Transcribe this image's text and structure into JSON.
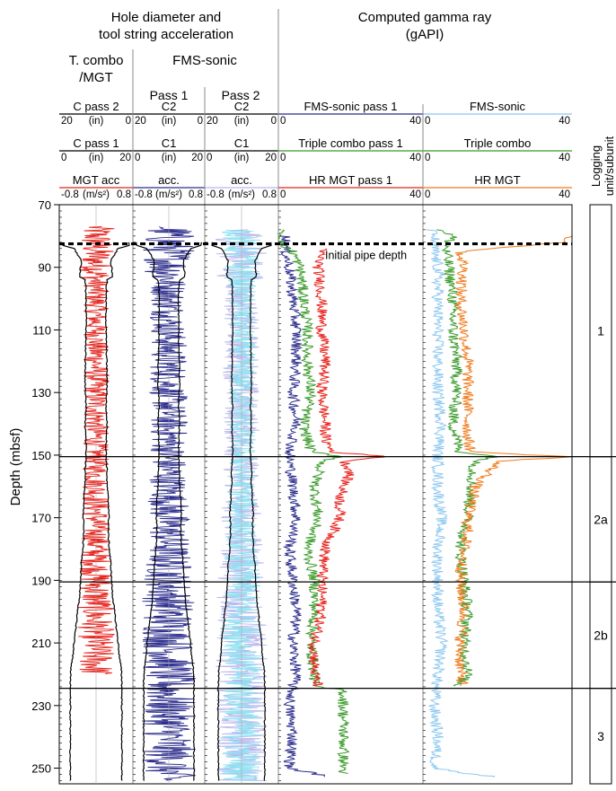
{
  "chart_data": {
    "type": "line",
    "group_headers": {
      "hole": [
        "Hole diameter and",
        "tool string acceleration"
      ],
      "gamma": [
        "Computed gamma ray",
        "(gAPI)"
      ]
    },
    "sub_headers": {
      "tcombo": [
        "T. combo",
        "/MGT"
      ],
      "fms": "FMS-sonic",
      "pass1": "Pass 1",
      "pass2": "Pass 2"
    },
    "y_axis": {
      "label": "Depth (mbsf)",
      "min": 70,
      "max": 255,
      "ticks": [
        70,
        90,
        110,
        130,
        150,
        170,
        190,
        210,
        230,
        250
      ]
    },
    "tracks": [
      {
        "id": "t1",
        "scales": [
          {
            "name": "C pass 2",
            "left": "20",
            "mid": "(in)",
            "right": "0",
            "color": "#000000"
          },
          {
            "name": "C pass 1",
            "left": "0",
            "mid": "(in)",
            "right": "20",
            "color": "#000000"
          },
          {
            "name": "MGT acc",
            "left": "-0.8",
            "mid": "(m/s²)",
            "right": "0.8",
            "color": "#e8201a"
          }
        ]
      },
      {
        "id": "t2",
        "scales": [
          {
            "name": "C2",
            "left": "20",
            "mid": "(in)",
            "right": "0",
            "color": "#000000"
          },
          {
            "name": "C1",
            "left": "0",
            "mid": "(in)",
            "right": "20",
            "color": "#000000"
          },
          {
            "name": "acc.",
            "left": "-0.8",
            "mid": "(m/s²)",
            "right": "0.8",
            "color": "#2b2c8c"
          }
        ]
      },
      {
        "id": "t3",
        "scales": [
          {
            "name": "C2",
            "left": "20",
            "mid": "(in)",
            "right": "0",
            "color": "#000000"
          },
          {
            "name": "C1",
            "left": "0",
            "mid": "(in)",
            "right": "20",
            "color": "#000000"
          },
          {
            "name": "acc.",
            "left": "-0.8",
            "mid": "(m/s²)",
            "right": "0.8",
            "color": "#b9b8ee"
          }
        ]
      },
      {
        "id": "t4",
        "scales": [
          {
            "name": "FMS-sonic pass 1",
            "left": "0",
            "mid": "",
            "right": "40",
            "color": "#2b2c8c"
          },
          {
            "name": "Triple combo pass 1",
            "left": "0",
            "mid": "",
            "right": "40",
            "color": "#3a9a2a"
          },
          {
            "name": "HR MGT pass 1",
            "left": "0",
            "mid": "",
            "right": "40",
            "color": "#e8201a"
          }
        ]
      },
      {
        "id": "t5",
        "scales": [
          {
            "name": "FMS-sonic",
            "left": "0",
            "mid": "",
            "right": "40",
            "color": "#8ec8f0"
          },
          {
            "name": "Triple combo",
            "left": "0",
            "mid": "",
            "right": "40",
            "color": "#3a9a2a"
          },
          {
            "name": "HR MGT",
            "left": "0",
            "mid": "",
            "right": "40",
            "color": "#f07a1a"
          }
        ]
      }
    ],
    "annotation": {
      "text": "Initial pipe depth",
      "depth": 82.5
    },
    "unit_boundaries": [
      150.5,
      190.5,
      224.5
    ],
    "units": {
      "label": [
        "Logging",
        "unit/subunit"
      ],
      "items": [
        {
          "name": "1",
          "top": 70,
          "bottom": 150.5
        },
        {
          "name": "2a",
          "top": 150.5,
          "bottom": 190.5
        },
        {
          "name": "2b",
          "top": 190.5,
          "bottom": 224.5
        },
        {
          "name": "3",
          "top": 224.5,
          "bottom": 255
        }
      ]
    },
    "gamma_series": [
      {
        "name": "FMS-sonic pass 1",
        "track": "t4",
        "color": "#2b2c8c",
        "depth": [
          80,
          85,
          90,
          100,
          110,
          120,
          130,
          140,
          150,
          160,
          170,
          180,
          190,
          200,
          210,
          220,
          224,
          230,
          240,
          250,
          253
        ],
        "value": [
          2,
          2,
          3,
          4,
          5,
          5,
          4,
          5,
          3,
          4,
          5,
          3,
          4,
          5,
          4,
          5,
          4,
          3,
          4,
          3,
          15
        ]
      },
      {
        "name": "Triple combo pass 1",
        "track": "t4",
        "color": "#3a9a2a",
        "depth": [
          78,
          80,
          83,
          85,
          90,
          100,
          110,
          120,
          130,
          140,
          149,
          150.5,
          152,
          160,
          170,
          180,
          190,
          200,
          210,
          220,
          224,
          225,
          252
        ],
        "value": [
          0,
          1,
          1,
          4,
          6,
          7,
          8,
          8,
          9,
          7,
          9,
          18,
          12,
          10,
          11,
          8,
          10,
          10,
          9,
          10,
          10,
          18,
          18
        ]
      },
      {
        "name": "HR MGT pass 1",
        "track": "t4",
        "color": "#e8201a",
        "depth": [
          84,
          90,
          100,
          110,
          120,
          130,
          140,
          145,
          149,
          150.5,
          152,
          155,
          160,
          165,
          170,
          175,
          180,
          190,
          200,
          210,
          220,
          224
        ],
        "value": [
          12,
          11,
          12,
          12,
          13,
          12,
          13,
          13,
          15,
          30,
          18,
          20,
          18,
          17,
          17,
          15,
          13,
          12,
          12,
          10,
          10,
          11
        ]
      },
      {
        "name": "FMS-sonic",
        "track": "t5",
        "color": "#8ec8f0",
        "depth": [
          78,
          80,
          85,
          90,
          100,
          110,
          120,
          130,
          140,
          150,
          160,
          170,
          180,
          190,
          200,
          210,
          220,
          230,
          240,
          250,
          253
        ],
        "value": [
          2,
          3,
          3,
          4,
          4,
          4,
          4,
          4,
          5,
          4,
          4,
          5,
          4,
          4,
          4,
          5,
          4,
          3,
          4,
          3,
          20
        ]
      },
      {
        "name": "Triple combo",
        "track": "t5",
        "color": "#3a9a2a",
        "depth": [
          78,
          80,
          84,
          90,
          100,
          110,
          120,
          130,
          140,
          149,
          150.5,
          152,
          160,
          170,
          180,
          190,
          200,
          210,
          220,
          224
        ],
        "value": [
          5,
          8,
          6,
          7,
          8,
          8,
          9,
          9,
          8,
          10,
          20,
          14,
          13,
          12,
          10,
          11,
          12,
          11,
          12,
          9
        ]
      },
      {
        "name": "HR MGT",
        "track": "t5",
        "color": "#f07a1a",
        "depth": [
          80,
          82,
          85,
          90,
          100,
          110,
          120,
          130,
          140,
          145,
          149,
          150.5,
          152,
          155,
          160,
          165,
          170,
          175,
          180,
          190,
          200,
          210,
          220,
          224
        ],
        "value": [
          40,
          38,
          10,
          11,
          10,
          11,
          12,
          12,
          12,
          12,
          13,
          40,
          20,
          18,
          14,
          13,
          12,
          12,
          11,
          10,
          11,
          10,
          10,
          11
        ]
      }
    ],
    "caliper_profile": {
      "depth": [
        81,
        83,
        84,
        88,
        93,
        94,
        96,
        98,
        100,
        110,
        120,
        128,
        132,
        135,
        140,
        148,
        152,
        155,
        158,
        163,
        168,
        175,
        180,
        185,
        190,
        195,
        200,
        205,
        210,
        215,
        218,
        222,
        224
      ],
      "halfwidth": [
        0.9,
        0.9,
        0.6,
        0.4,
        0.45,
        0.3,
        0.28,
        0.28,
        0.27,
        0.27,
        0.29,
        0.3,
        0.28,
        0.27,
        0.3,
        0.27,
        0.28,
        0.3,
        0.29,
        0.32,
        0.35,
        0.33,
        0.36,
        0.4,
        0.42,
        0.45,
        0.5,
        0.55,
        0.6,
        0.64,
        0.68,
        0.7,
        0.7
      ]
    }
  }
}
